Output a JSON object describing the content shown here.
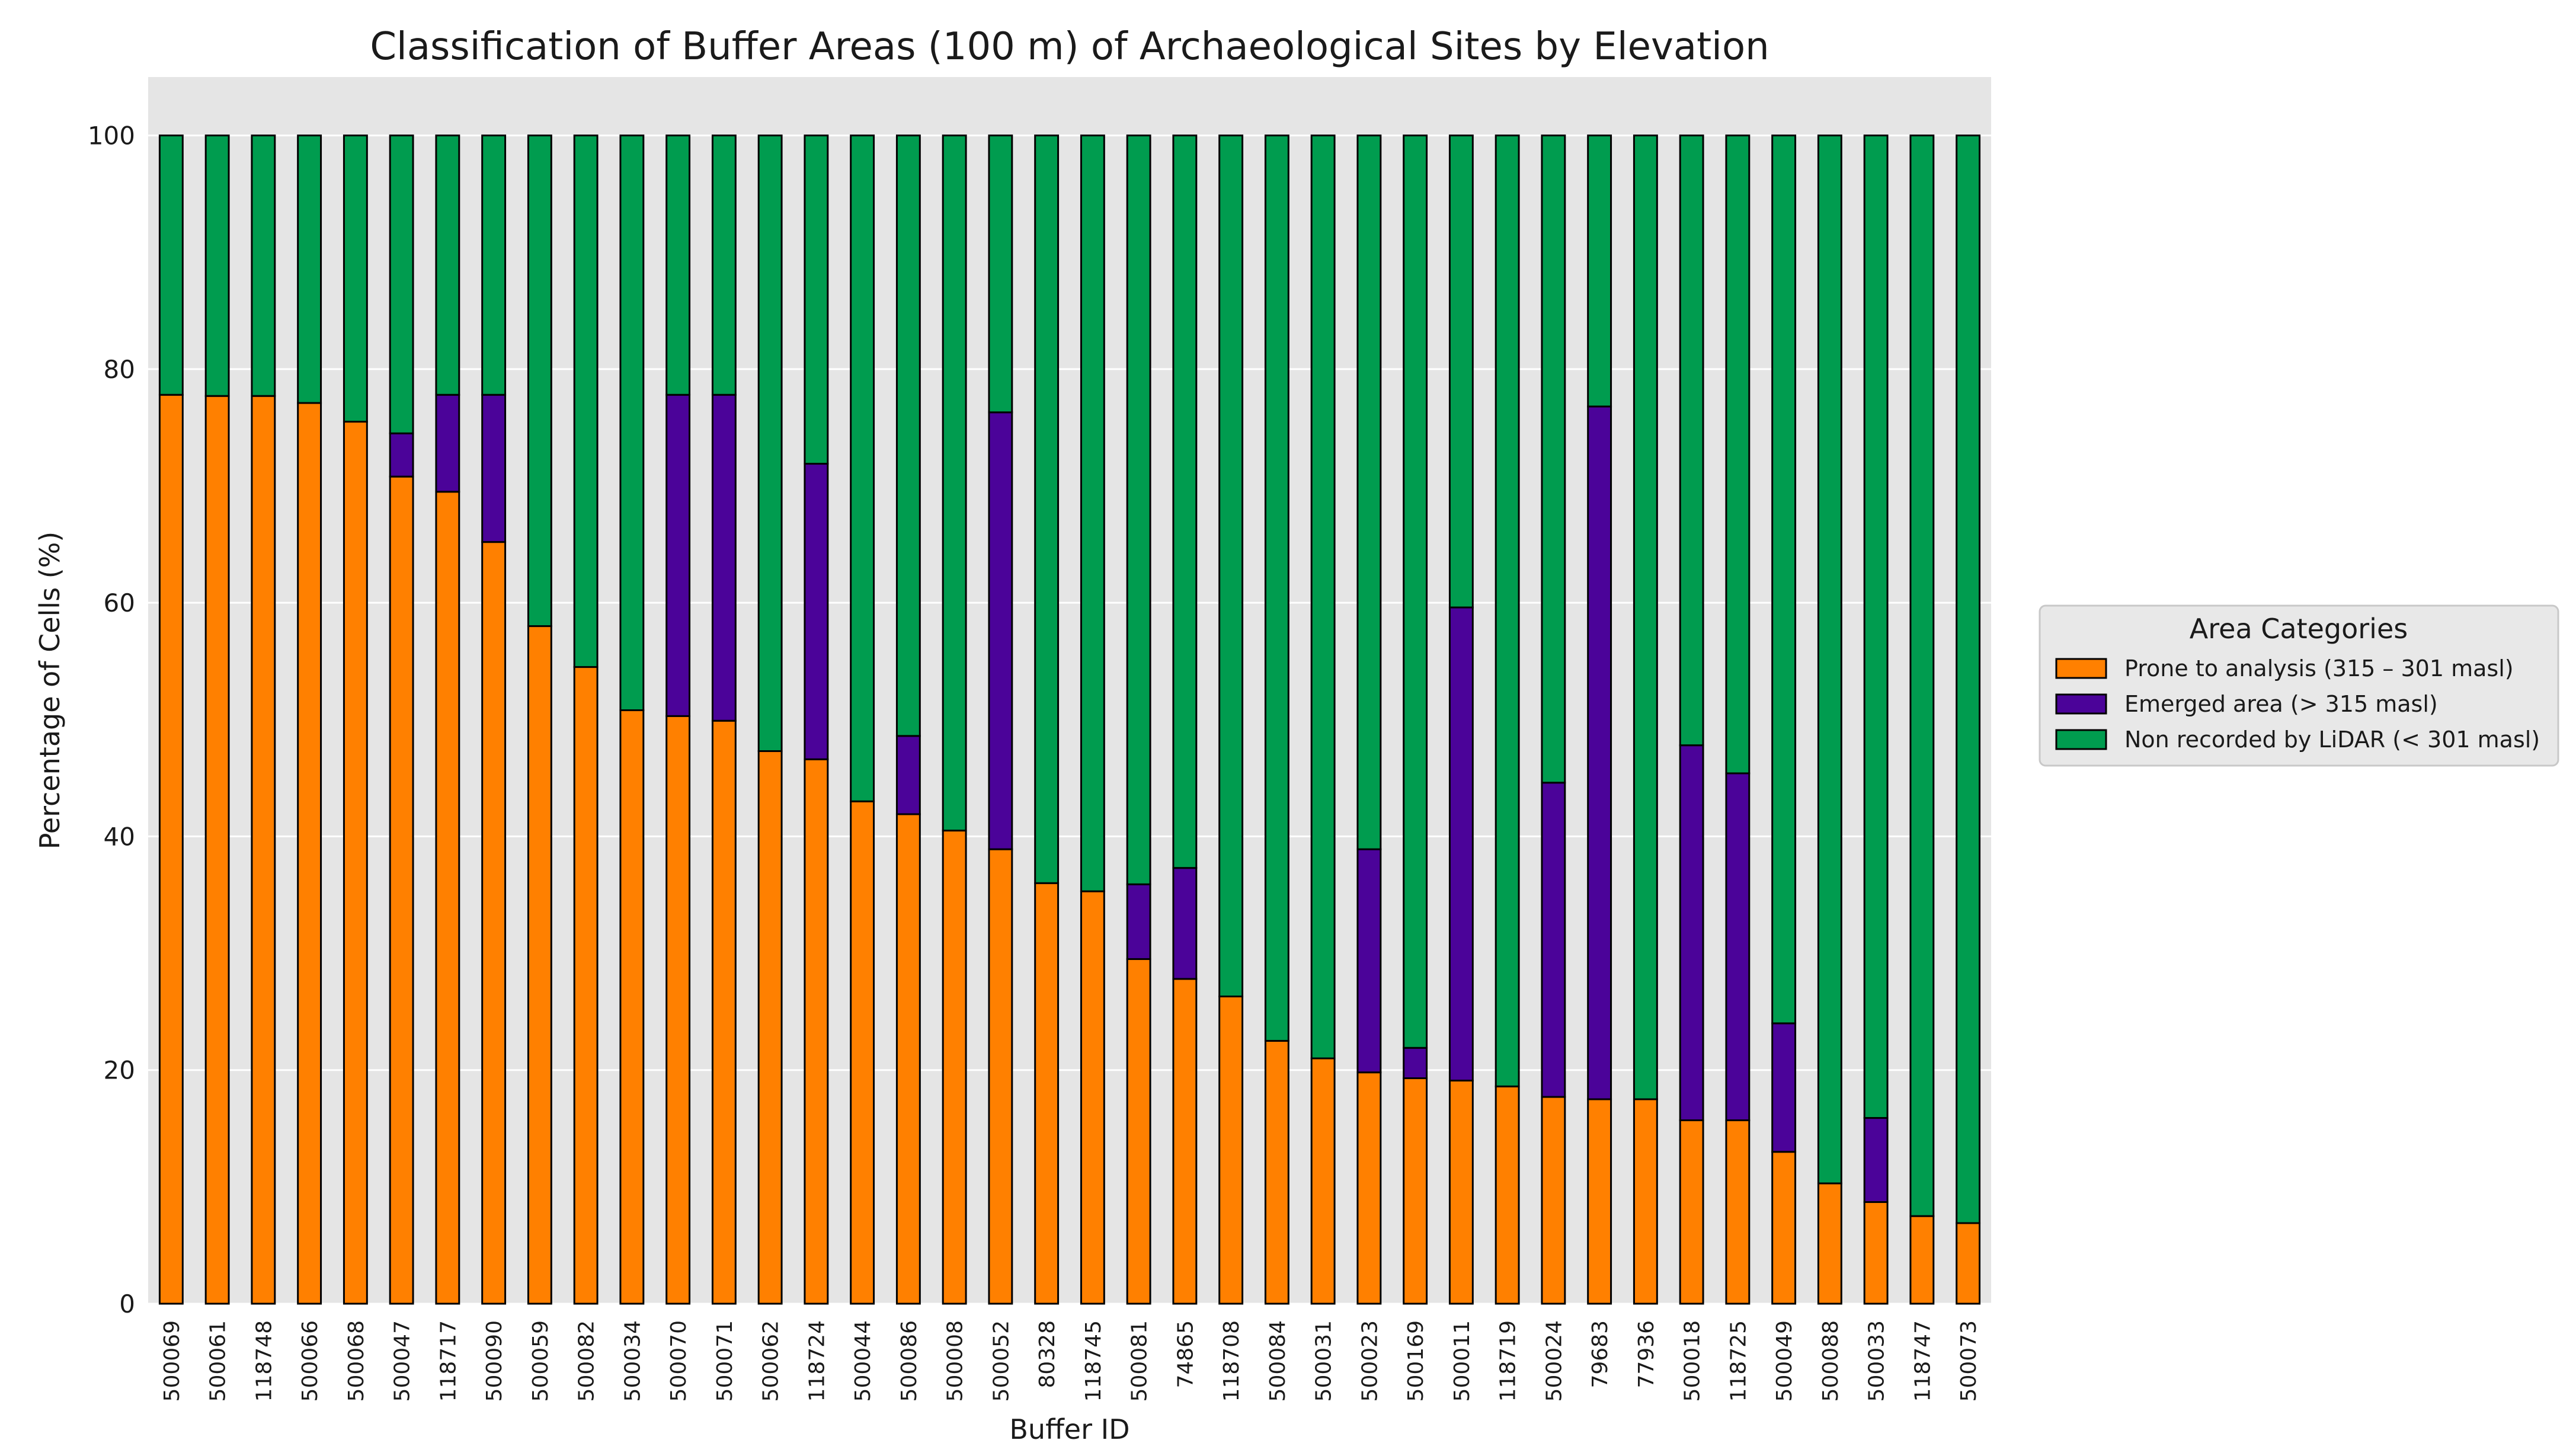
{
  "chart_data": {
    "type": "bar",
    "stacked": true,
    "title": "Classification of Buffer Areas (100 m) of Archaeological Sites by Elevation",
    "xlabel": "Buffer ID",
    "ylabel": "Percentage of Cells (%)",
    "ylim": [
      0,
      105
    ],
    "yticks": [
      0,
      20,
      40,
      60,
      80,
      100
    ],
    "grid": true,
    "legend_position": "right-center",
    "legend_title": "Area Categories",
    "categories": [
      "500069",
      "500061",
      "118748",
      "500066",
      "500068",
      "500047",
      "118717",
      "500090",
      "500059",
      "500082",
      "500034",
      "500070",
      "500071",
      "500062",
      "118724",
      "500044",
      "500086",
      "500008",
      "500052",
      "80328",
      "118745",
      "500081",
      "74865",
      "118708",
      "500084",
      "500031",
      "500023",
      "500169",
      "500011",
      "118719",
      "500024",
      "79683",
      "77936",
      "500018",
      "118725",
      "500049",
      "500088",
      "500033",
      "118747",
      "500073"
    ],
    "series": [
      {
        "name": "Prone to analysis (315 – 301 masl)",
        "color": "#ff8000",
        "values": [
          77.8,
          77.7,
          77.7,
          77.1,
          75.5,
          70.8,
          69.5,
          65.2,
          58.0,
          54.5,
          50.8,
          50.3,
          49.9,
          47.3,
          46.6,
          43.0,
          41.9,
          40.5,
          38.9,
          36.0,
          35.3,
          29.5,
          27.8,
          26.3,
          22.5,
          21.0,
          19.8,
          19.3,
          19.1,
          18.6,
          17.7,
          17.5,
          17.5,
          15.7,
          15.7,
          13.0,
          10.3,
          8.7,
          7.5,
          6.9
        ]
      },
      {
        "name": "Emerged area (> 315 masl)",
        "color": "#4b0399",
        "values": [
          0,
          0,
          0,
          0,
          0,
          3.7,
          8.3,
          12.6,
          0,
          0,
          0,
          27.5,
          27.9,
          0,
          25.3,
          0,
          6.7,
          0,
          37.4,
          0,
          0,
          6.4,
          9.5,
          0,
          0,
          0,
          19.1,
          2.6,
          40.5,
          0,
          26.9,
          59.3,
          0,
          32.1,
          29.7,
          11.0,
          0,
          7.2,
          0,
          0
        ]
      },
      {
        "name": "Non recorded by LiDAR (< 301 masl)",
        "color": "#009c4f",
        "values": [
          22.2,
          22.3,
          22.3,
          22.9,
          24.5,
          25.5,
          22.2,
          22.2,
          42.0,
          45.5,
          49.2,
          22.2,
          22.2,
          52.7,
          28.1,
          57.0,
          51.4,
          59.5,
          23.7,
          64.0,
          64.7,
          64.1,
          62.7,
          73.7,
          77.5,
          79.0,
          61.1,
          78.1,
          40.4,
          81.4,
          55.4,
          23.2,
          82.5,
          52.2,
          54.6,
          76.0,
          89.7,
          84.1,
          92.5,
          93.1
        ]
      }
    ]
  }
}
